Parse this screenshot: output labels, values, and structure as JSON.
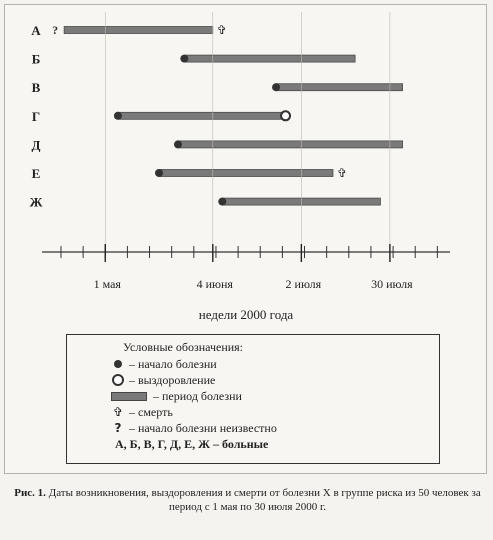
{
  "chart_data": {
    "type": "gantt",
    "title": "",
    "xlabel": "недели 2000 года",
    "x_ticks": [
      "1 мая",
      "4 июня",
      "2 июля",
      "30 июля"
    ],
    "xlim": [
      "2000-04-11",
      "2000-08-18"
    ],
    "rows": [
      {
        "label": "А",
        "start": "2000-04-18",
        "end": "2000-06-04",
        "start_marker": "unknown",
        "end_marker": "death"
      },
      {
        "label": "Б",
        "start": "2000-05-26",
        "end": "2000-07-19",
        "start_marker": "onset",
        "end_marker": "none"
      },
      {
        "label": "В",
        "start": "2000-06-24",
        "end": "2000-08-03",
        "start_marker": "onset",
        "end_marker": "none"
      },
      {
        "label": "Г",
        "start": "2000-05-05",
        "end": "2000-06-27",
        "start_marker": "onset",
        "end_marker": "recovery"
      },
      {
        "label": "Д",
        "start": "2000-05-24",
        "end": "2000-08-03",
        "start_marker": "onset",
        "end_marker": "none"
      },
      {
        "label": "Е",
        "start": "2000-05-18",
        "end": "2000-07-12",
        "start_marker": "onset",
        "end_marker": "death"
      },
      {
        "label": "Ж",
        "start": "2000-06-07",
        "end": "2000-07-27",
        "start_marker": "onset",
        "end_marker": "none"
      }
    ]
  },
  "legend": {
    "title": "Условные обозначения:",
    "onset": "– начало болезни",
    "recovery": "– выздоровление",
    "period": "– период болезни",
    "death_glyph": "✞",
    "death": "– смерть",
    "unknown_glyph": "?",
    "unknown": "– начало болезни неизвестно",
    "patients": "А, Б, В, Г, Д, Е, Ж – больные"
  },
  "caption": {
    "label": "Рис. 1.",
    "text": "Даты возникновения, выздоровления и смерти от болезни X в группе риска из 50 человек за период с 1 мая по 30 июля 2000 г."
  },
  "colors": {
    "bar": "#7a7a7a",
    "marker": "#333333"
  }
}
